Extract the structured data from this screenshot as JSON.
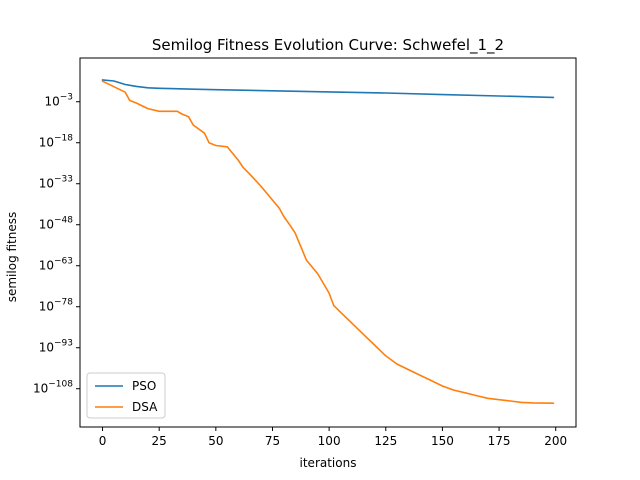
{
  "chart_data": {
    "type": "line",
    "title": "Semilog Fitness Evolution Curve: Schwefel_1_2",
    "xlabel": "iterations",
    "ylabel": "semilog fitness",
    "xlim": [
      -9.95,
      208.95
    ],
    "ylim_log10": [
      -122,
      13
    ],
    "yscale": "log",
    "grid": false,
    "legend_position": "lower-left",
    "x_ticks": [
      0,
      25,
      50,
      75,
      100,
      125,
      150,
      175,
      200
    ],
    "y_ticks": [
      {
        "exp": -3,
        "label": "10^-3"
      },
      {
        "exp": -18,
        "label": "10^-18"
      },
      {
        "exp": -33,
        "label": "10^-33"
      },
      {
        "exp": -48,
        "label": "10^-48"
      },
      {
        "exp": -63,
        "label": "10^-63"
      },
      {
        "exp": -78,
        "label": "10^-78"
      },
      {
        "exp": -93,
        "label": "10^-93"
      },
      {
        "exp": -108,
        "label": "10^-108"
      }
    ],
    "series": [
      {
        "name": "PSO",
        "color": "#1f77b4",
        "x": [
          0,
          5,
          10,
          15,
          20,
          25,
          30,
          40,
          50,
          75,
          100,
          125,
          150,
          175,
          199
        ],
        "log10_y": [
          5.0,
          4.6,
          3.3,
          2.6,
          2.1,
          1.9,
          1.8,
          1.6,
          1.4,
          1.0,
          0.6,
          0.2,
          -0.4,
          -0.9,
          -1.4
        ]
      },
      {
        "name": "DSA",
        "color": "#ff7f0e",
        "x": [
          0,
          5,
          10,
          12,
          15,
          20,
          25,
          30,
          33,
          35,
          38,
          40,
          45,
          47,
          50,
          55,
          60,
          62,
          65,
          70,
          75,
          78,
          80,
          83,
          85,
          87,
          90,
          95,
          100,
          102,
          105,
          110,
          115,
          120,
          125,
          130,
          135,
          140,
          145,
          150,
          155,
          160,
          165,
          170,
          175,
          180,
          185,
          190,
          199
        ],
        "log10_y": [
          4.5,
          2.5,
          0.5,
          -2.5,
          -3.5,
          -5.5,
          -6.5,
          -6.5,
          -6.5,
          -7.5,
          -8.5,
          -11.5,
          -14.5,
          -18.0,
          -19.0,
          -19.5,
          -24.5,
          -27.0,
          -29.5,
          -34.0,
          -39.0,
          -42.0,
          -45.0,
          -48.5,
          -51.0,
          -55.0,
          -61.0,
          -66.0,
          -73.0,
          -77.5,
          -80.0,
          -84.0,
          -88.0,
          -92.0,
          -96.0,
          -99.0,
          -101.0,
          -103.0,
          -105.0,
          -107.0,
          -108.5,
          -109.5,
          -110.5,
          -111.5,
          -112.0,
          -112.5,
          -113.0,
          -113.2,
          -113.3
        ]
      }
    ]
  }
}
